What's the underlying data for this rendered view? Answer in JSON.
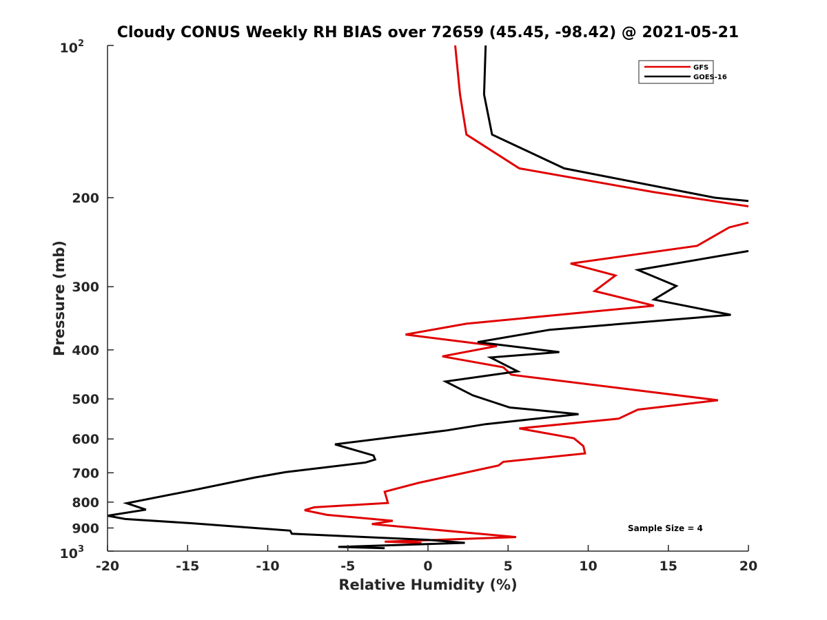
{
  "chart_data": {
    "type": "line",
    "title": "Cloudy CONUS Weekly RH BIAS over 72659 (45.45, -98.42) @ 2021-05-21",
    "xlabel": "Relative Humidity (%)",
    "ylabel": "Pressure (mb)",
    "xlim": [
      -20,
      20
    ],
    "ylim": [
      100,
      1000
    ],
    "yscale": "log",
    "yreversed": true,
    "xticks": [
      "-20",
      "-15",
      "-10",
      "-5",
      "0",
      "5",
      "10",
      "15",
      "20"
    ],
    "yticks": [
      {
        "value": 100,
        "label": "10",
        "sup": "2"
      },
      {
        "value": 200,
        "label": "200",
        "sup": ""
      },
      {
        "value": 300,
        "label": "300",
        "sup": ""
      },
      {
        "value": 400,
        "label": "400",
        "sup": ""
      },
      {
        "value": 500,
        "label": "500",
        "sup": ""
      },
      {
        "value": 600,
        "label": "600",
        "sup": ""
      },
      {
        "value": 700,
        "label": "700",
        "sup": ""
      },
      {
        "value": 800,
        "label": "800",
        "sup": ""
      },
      {
        "value": 900,
        "label": "900",
        "sup": ""
      },
      {
        "value": 1000,
        "label": "10",
        "sup": "3"
      }
    ],
    "grid": false,
    "legend_position": "top-right",
    "annotation": "Sample Size = 4",
    "series": [
      {
        "name": "GFS",
        "color": "#e00000",
        "segments": [
          [
            [
              1.7,
              100
            ],
            [
              2.0,
              125
            ],
            [
              2.4,
              150
            ],
            [
              5.7,
              175
            ],
            [
              14.1,
              195
            ],
            [
              20.0,
              208
            ]
          ],
          [
            [
              20.0,
              224
            ],
            [
              18.8,
              229
            ],
            [
              16.8,
              249
            ],
            [
              8.9,
              270
            ],
            [
              11.7,
              285
            ],
            [
              10.4,
              306
            ],
            [
              14.1,
              327
            ],
            [
              2.4,
              355
            ],
            [
              -1.4,
              373
            ],
            [
              4.3,
              393
            ],
            [
              0.9,
              412
            ],
            [
              4.7,
              433
            ],
            [
              5.2,
              448
            ],
            [
              18.1,
              503
            ],
            [
              13.1,
              525
            ],
            [
              11.9,
              547
            ],
            [
              5.7,
              572
            ],
            [
              9.1,
              598
            ],
            [
              9.7,
              620
            ],
            [
              9.8,
              641
            ],
            [
              4.7,
              666
            ],
            [
              4.4,
              677
            ],
            [
              0.7,
              718
            ],
            [
              -0.6,
              733
            ],
            [
              -2.7,
              763
            ],
            [
              -2.5,
              803
            ],
            [
              -7.1,
              819
            ],
            [
              -7.7,
              830
            ],
            [
              -6.3,
              848
            ],
            [
              -2.2,
              871
            ],
            [
              -3.5,
              884
            ],
            [
              5.5,
              938
            ],
            [
              -2.7,
              958
            ],
            [
              -0.4,
              963
            ]
          ]
        ]
      },
      {
        "name": "GOES-16",
        "color": "#000000",
        "segments": [
          [
            [
              3.6,
              100
            ],
            [
              3.5,
              125
            ],
            [
              4.0,
              150
            ],
            [
              8.5,
              175
            ],
            [
              17.9,
              200
            ],
            [
              20.0,
              203
            ]
          ],
          [
            [
              20.0,
              255
            ],
            [
              13.1,
              278
            ],
            [
              15.5,
              299
            ],
            [
              14.1,
              318
            ],
            [
              18.9,
              341
            ],
            [
              7.6,
              365
            ],
            [
              3.1,
              386
            ],
            [
              8.2,
              404
            ],
            [
              3.9,
              414
            ],
            [
              5.6,
              441
            ],
            [
              1.1,
              462
            ],
            [
              2.8,
              492
            ],
            [
              5.1,
              520
            ],
            [
              9.4,
              536
            ],
            [
              3.6,
              561
            ],
            [
              1.2,
              577
            ],
            [
              -5.8,
              615
            ],
            [
              -3.4,
              647
            ],
            [
              -3.3,
              659
            ],
            [
              -3.9,
              668
            ],
            [
              -8.9,
              698
            ],
            [
              -10.8,
              715
            ],
            [
              -14.6,
              757
            ],
            [
              -18.8,
              804
            ],
            [
              -17.6,
              828
            ],
            [
              -20.0,
              851
            ],
            [
              -18.9,
              864
            ],
            [
              -14.7,
              881
            ],
            [
              -8.6,
              911
            ],
            [
              -8.5,
              924
            ],
            [
              0.0,
              950
            ],
            [
              2.3,
              963
            ],
            [
              -5.6,
              981
            ],
            [
              -2.7,
              987
            ]
          ]
        ]
      }
    ]
  },
  "colors": {
    "axis": "#262626",
    "gfs": "#e00000",
    "goes": "#000000"
  }
}
